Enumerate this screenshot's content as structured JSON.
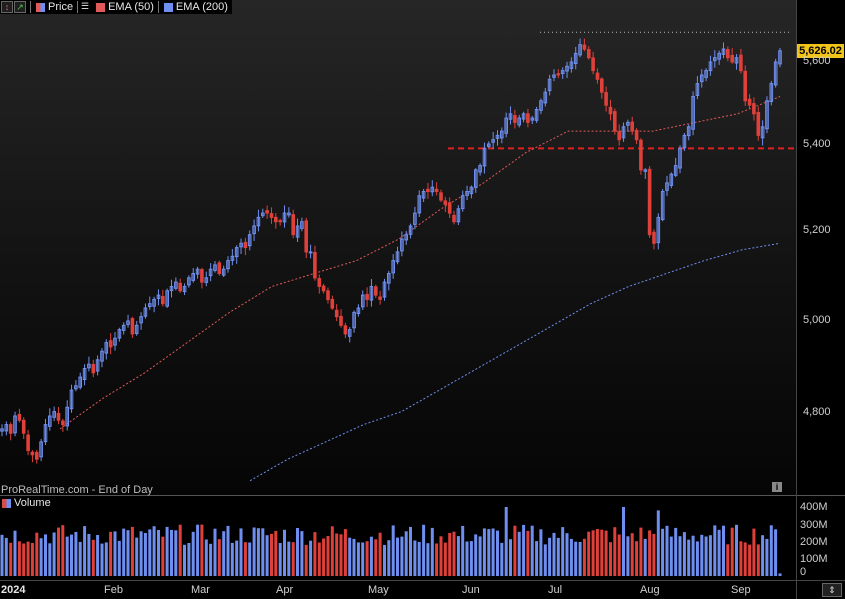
{
  "legend": {
    "price_label": "Price",
    "ema50_label": "EMA (50)",
    "ema200_label": "EMA (200)",
    "price_color": "#e05a5a",
    "ema50_color": "#e05a5a",
    "ema200_color": "#6f8ff0"
  },
  "footer": {
    "source_text": "ProRealTime.com - End of Day",
    "info_icon": "info-icon"
  },
  "last_price": "5,626.02",
  "volume_panel": {
    "label": "Volume"
  },
  "price_axis_labels": [
    "5,600",
    "5,400",
    "5,200",
    "5,000",
    "4,800"
  ],
  "volume_axis_labels": [
    "400M",
    "300M",
    "200M",
    "100M",
    "0"
  ],
  "date_labels": [
    "2024",
    "Feb",
    "Mar",
    "Apr",
    "May",
    "Jun",
    "Jul",
    "Aug",
    "Sep"
  ],
  "colors": {
    "up": "#6f8ff0",
    "down": "#e0403a",
    "support": "#e0201e"
  },
  "chart_data": [
    {
      "type": "candlestick",
      "title": "",
      "y_axis_ticks": [
        4800,
        5000,
        5200,
        5400,
        5600
      ],
      "ylim": [
        4640,
        5660
      ],
      "x_ticks": [
        "2024",
        "Feb",
        "Mar",
        "Apr",
        "May",
        "Jun",
        "Jul",
        "Aug",
        "Sep"
      ],
      "last_close": 5626.02,
      "support_level": 5400,
      "recent_high_level": 5669,
      "close_series": [
        4750,
        4760,
        4740,
        4780,
        4770,
        4740,
        4700,
        4690,
        4680,
        4720,
        4760,
        4780,
        4790,
        4770,
        4760,
        4800,
        4840,
        4850,
        4870,
        4890,
        4900,
        4880,
        4910,
        4930,
        4950,
        4940,
        4960,
        4980,
        4990,
        5000,
        4970,
        4990,
        5010,
        5030,
        5040,
        5050,
        5060,
        5040,
        5070,
        5080,
        5090,
        5070,
        5080,
        5100,
        5110,
        5120,
        5090,
        5100,
        5120,
        5130,
        5110,
        5120,
        5140,
        5150,
        5170,
        5180,
        5170,
        5200,
        5220,
        5240,
        5250,
        5250,
        5240,
        5230,
        5230,
        5250,
        5250,
        5200,
        5220,
        5230,
        5160,
        5160,
        5100,
        5080,
        5070,
        5050,
        5030,
        5010,
        4990,
        4970,
        4980,
        5020,
        5030,
        5060,
        5050,
        5080,
        5060,
        5050,
        5090,
        5110,
        5140,
        5160,
        5190,
        5200,
        5220,
        5250,
        5290,
        5300,
        5300,
        5310,
        5300,
        5280,
        5270,
        5250,
        5230,
        5260,
        5290,
        5300,
        5310,
        5350,
        5360,
        5400,
        5410,
        5420,
        5430,
        5440,
        5470,
        5480,
        5460,
        5470,
        5480,
        5460,
        5470,
        5490,
        5510,
        5530,
        5560,
        5570,
        5570,
        5580,
        5590,
        5600,
        5620,
        5640,
        5630,
        5610,
        5580,
        5560,
        5530,
        5500,
        5480,
        5440,
        5420,
        5450,
        5460,
        5440,
        5420,
        5350,
        5350,
        5200,
        5180,
        5240,
        5300,
        5320,
        5340,
        5360,
        5400,
        5430,
        5450,
        5520,
        5550,
        5570,
        5580,
        5600,
        5610,
        5620,
        5630,
        5610,
        5600,
        5610,
        5580,
        5510,
        5500,
        5480,
        5430,
        5450,
        5510,
        5550,
        5600,
        5626.02
      ],
      "series": [
        {
          "name": "EMA (50)",
          "values": [
            4750,
            4820,
            4880,
            4950,
            5020,
            5080,
            5110,
            5140,
            5190,
            5260,
            5320,
            5390,
            5440,
            5440,
            5440,
            5460,
            5480,
            5520
          ]
        },
        {
          "name": "EMA (200)",
          "values": [
            4630,
            4680,
            4720,
            4760,
            4790,
            4840,
            4890,
            4940,
            4990,
            5040,
            5080,
            5110,
            5140,
            5165,
            5180
          ]
        }
      ]
    },
    {
      "type": "bar",
      "title": "Volume",
      "ylim": [
        0,
        400000000
      ],
      "y_axis_ticks": [
        0,
        100000000,
        200000000,
        300000000,
        400000000
      ],
      "typical_range": [
        180000000,
        300000000
      ],
      "peaks": [
        {
          "period": "Jun",
          "value": 400000000
        },
        {
          "period": "Jul",
          "value": 400000000
        },
        {
          "period": "Aug",
          "value": 380000000
        }
      ]
    }
  ]
}
